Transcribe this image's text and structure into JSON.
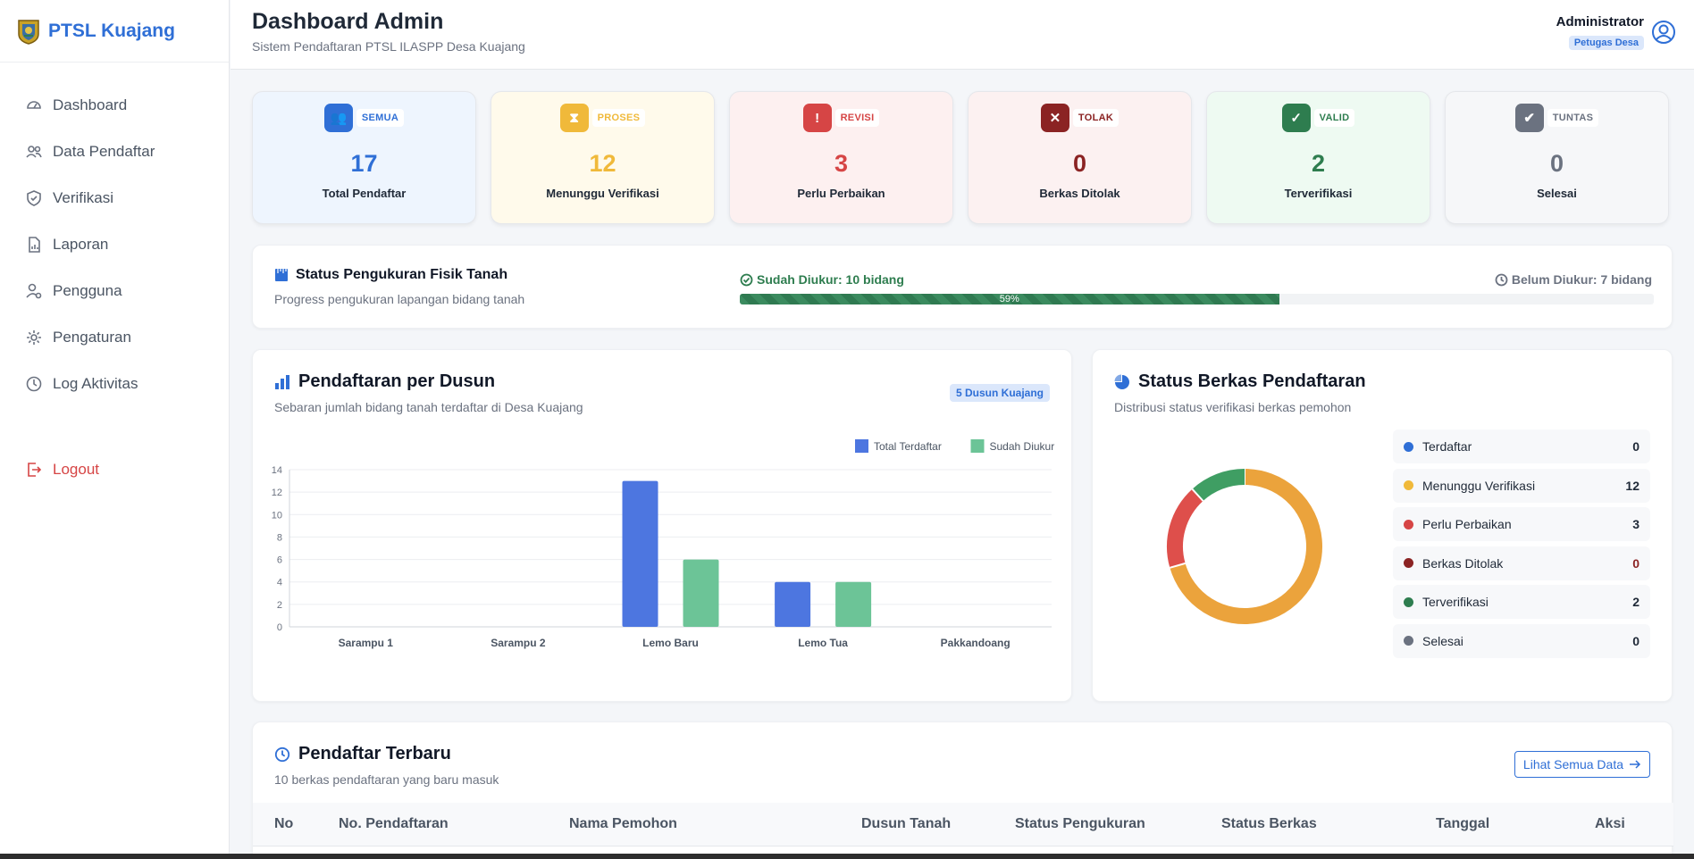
{
  "sidebar": {
    "brand": "PTSL Kuajang",
    "items": [
      {
        "label": "Dashboard",
        "icon": "gauge-icon"
      },
      {
        "label": "Data Pendaftar",
        "icon": "users-icon"
      },
      {
        "label": "Verifikasi",
        "icon": "shield-check-icon"
      },
      {
        "label": "Laporan",
        "icon": "report-icon"
      },
      {
        "label": "Pengguna",
        "icon": "user-gear-icon"
      },
      {
        "label": "Pengaturan",
        "icon": "gear-icon"
      },
      {
        "label": "Log Aktivitas",
        "icon": "clock-icon"
      }
    ],
    "logout": "Logout"
  },
  "header": {
    "title": "Dashboard Admin",
    "subtitle": "Sistem Pendaftaran PTSL ILASPP Desa Kuajang",
    "user_name": "Administrator",
    "user_role": "Petugas Desa"
  },
  "stats": [
    {
      "tag": "SEMUA",
      "value": "17",
      "label": "Total Pendaftar",
      "color": "#2f6fd6",
      "bg": "#eef5fe",
      "icon": "users-icon"
    },
    {
      "tag": "PROSES",
      "value": "12",
      "label": "Menunggu Verifikasi",
      "color": "#f0b93a",
      "bg": "#fffaeb",
      "icon": "hourglass-icon"
    },
    {
      "tag": "REVISI",
      "value": "3",
      "label": "Perlu Perbaikan",
      "color": "#d64545",
      "bg": "#fdf0f0",
      "icon": "alert-icon"
    },
    {
      "tag": "TOLAK",
      "value": "0",
      "label": "Berkas Ditolak",
      "color": "#8b2323",
      "bg": "#fcf1f1",
      "icon": "x-circle-icon"
    },
    {
      "tag": "VALID",
      "value": "2",
      "label": "Terverifikasi",
      "color": "#2e7d4f",
      "bg": "#eefaf2",
      "icon": "check-circle-icon"
    },
    {
      "tag": "TUNTAS",
      "value": "0",
      "label": "Selesai",
      "color": "#6b7280",
      "bg": "#f6f7f9",
      "icon": "double-check-icon"
    }
  ],
  "measurement": {
    "title": "Status Pengukuran Fisik Tanah",
    "subtitle": "Progress pengukuran lapangan bidang tanah",
    "done_label": "Sudah Diukur: 10 bidang",
    "todo_label": "Belum Diukur: 7 bidang",
    "progress_label": "59%",
    "progress": 0.59
  },
  "dusun_chart": {
    "title": "Pendaftaran per Dusun",
    "subtitle": "Sebaran jumlah bidang tanah terdaftar di Desa Kuajang",
    "badge": "5 Dusun Kuajang"
  },
  "status_chart": {
    "title": "Status Berkas Pendaftaran",
    "subtitle": "Distribusi status verifikasi berkas pemohon",
    "items": [
      {
        "label": "Terdaftar",
        "count": "0",
        "color": "#2f6fd6"
      },
      {
        "label": "Menunggu Verifikasi",
        "count": "12",
        "color": "#f0b93a"
      },
      {
        "label": "Perlu Perbaikan",
        "count": "3",
        "color": "#d64545"
      },
      {
        "label": "Berkas Ditolak",
        "count": "0",
        "color": "#8b2323"
      },
      {
        "label": "Terverifikasi",
        "count": "2",
        "color": "#2e7d4f"
      },
      {
        "label": "Selesai",
        "count": "0",
        "color": "#6b7280"
      }
    ]
  },
  "recent": {
    "title": "Pendaftar Terbaru",
    "subtitle": "10 berkas pendaftaran yang baru masuk",
    "see_all": "Lihat Semua Data",
    "columns": [
      "No",
      "No. Pendaftaran",
      "Nama Pemohon",
      "Dusun Tanah",
      "Status Pengukuran",
      "Status Berkas",
      "Tanggal",
      "Aksi"
    ]
  },
  "chart_data": [
    {
      "type": "bar",
      "categories": [
        "Sarampu 1",
        "Sarampu 2",
        "Lemo Baru",
        "Lemo Tua",
        "Pakkandoang"
      ],
      "series": [
        {
          "name": "Total Terdaftar",
          "values": [
            0,
            0,
            13,
            4,
            0
          ],
          "color": "#4d76e0"
        },
        {
          "name": "Sudah Diukur",
          "values": [
            0,
            0,
            6,
            4,
            0
          ],
          "color": "#6cc497"
        }
      ],
      "yticks": [
        "0",
        "2",
        "4",
        "6",
        "8",
        "10",
        "12",
        "14"
      ],
      "ylim": [
        0,
        14
      ],
      "legend": "top-right",
      "grid": true
    },
    {
      "type": "pie",
      "donut": true,
      "labels": [
        "Terdaftar",
        "Menunggu Verifikasi",
        "Perlu Perbaikan",
        "Berkas Ditolak",
        "Terverifikasi",
        "Selesai"
      ],
      "values": [
        0,
        12,
        3,
        0,
        2,
        0
      ],
      "colors": [
        "#2f6fd6",
        "#eba33c",
        "#de4f4b",
        "#8b2323",
        "#3f9e63",
        "#6b7280"
      ]
    }
  ]
}
